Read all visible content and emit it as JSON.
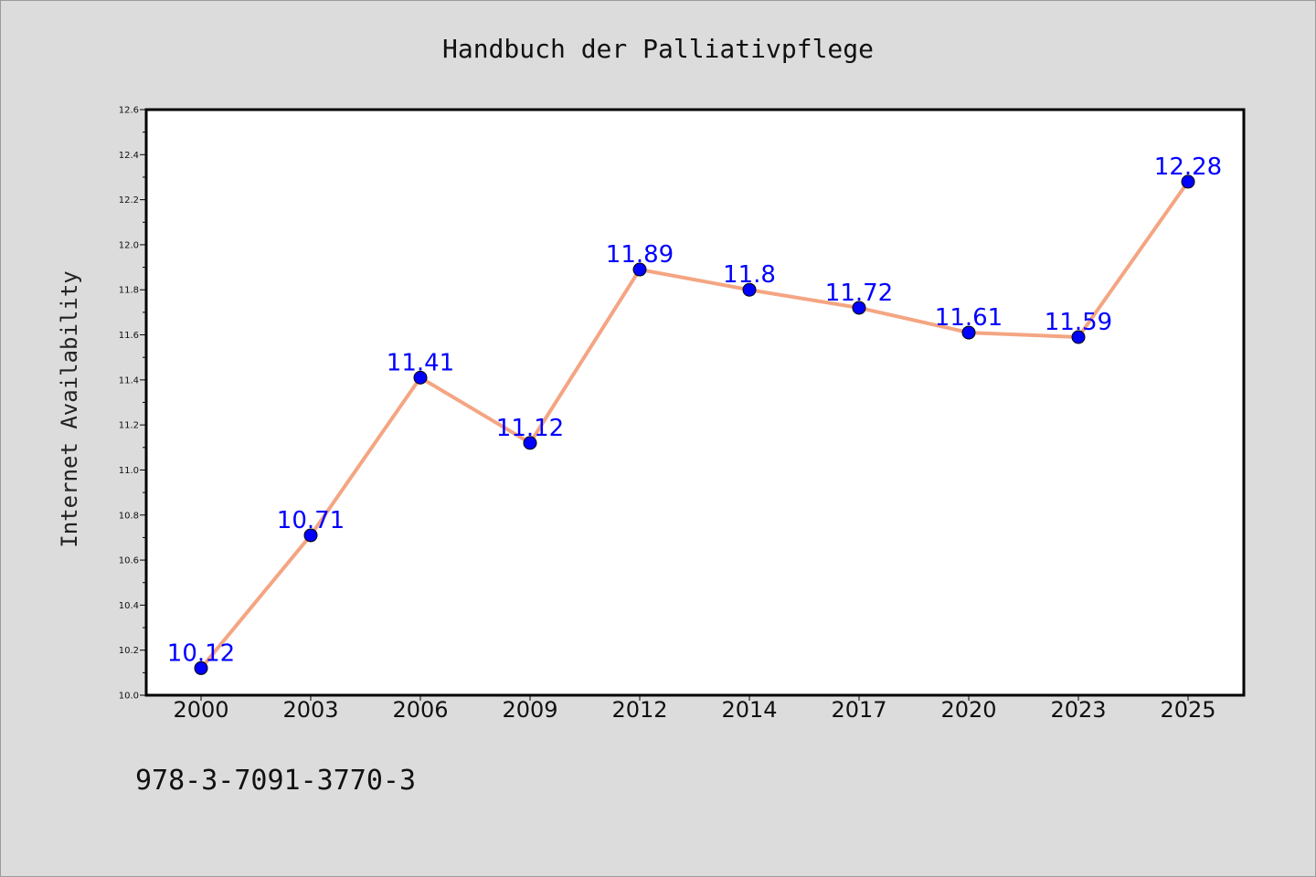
{
  "chart_data": {
    "type": "line",
    "title": "Handbuch der Palliativpflege",
    "xlabel": "",
    "ylabel": "Internet Availability",
    "categories": [
      "2000",
      "2003",
      "2006",
      "2009",
      "2012",
      "2014",
      "2017",
      "2020",
      "2023",
      "2025"
    ],
    "values": [
      10.12,
      10.71,
      11.41,
      11.12,
      11.89,
      11.8,
      11.72,
      11.61,
      11.59,
      12.28
    ],
    "data_labels": [
      "10.12",
      "10.71",
      "11.41",
      "11.12",
      "11.89",
      "11.8",
      "11.72",
      "11.61",
      "11.59",
      "12.28"
    ],
    "ylim": [
      10.0,
      12.6
    ],
    "yticks": [
      "10.0",
      "10.2",
      "10.4",
      "10.6",
      "10.8",
      "11.0",
      "11.2",
      "11.4",
      "11.6",
      "11.8",
      "12.0",
      "12.2",
      "12.4",
      "12.6"
    ],
    "grid": false,
    "colors": {
      "line": "#f4a582",
      "marker": "#0000ff",
      "label": "#0000ff",
      "background": "#dcdcdc",
      "plot_area": "#ffffff"
    }
  },
  "footer": {
    "isbn": "978-3-7091-3770-3"
  }
}
